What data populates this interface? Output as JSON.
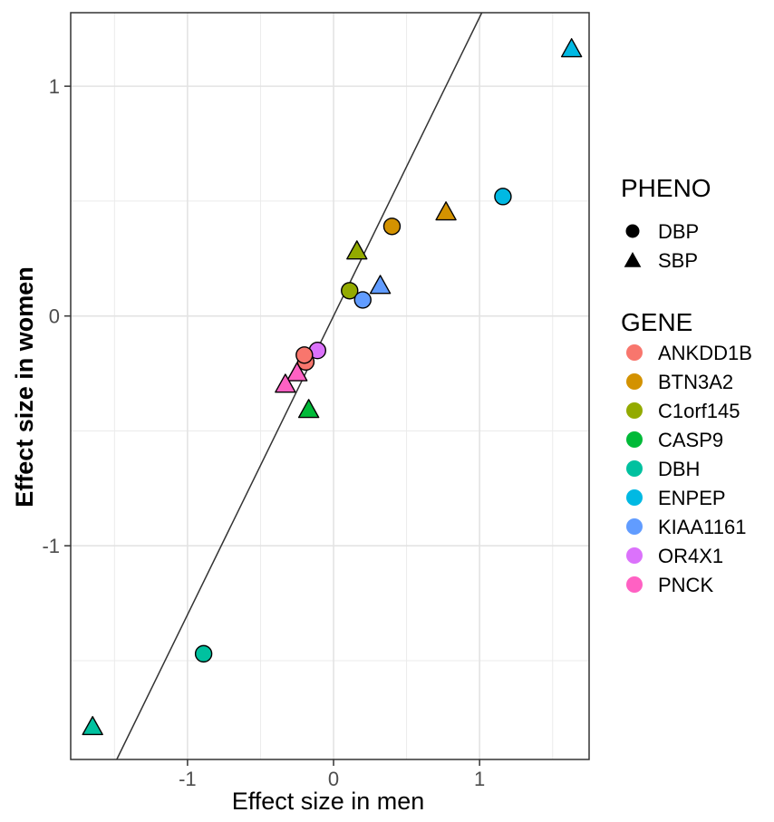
{
  "chart_data": {
    "type": "scatter",
    "xlabel": "Effect size in men",
    "ylabel": "Effect size in women",
    "xlim": [
      -1.8,
      1.75
    ],
    "ylim": [
      -1.93,
      1.32
    ],
    "x_ticks": [
      -1,
      0,
      1
    ],
    "x_tick_labels": [
      "-1",
      "0",
      "1"
    ],
    "x_minor_ticks": [
      -1.5,
      -0.5,
      0.5,
      1.5
    ],
    "y_ticks": [
      -1,
      0,
      1
    ],
    "y_tick_labels": [
      "-1",
      "0",
      "1"
    ],
    "y_minor_ticks": [
      -1.5,
      -0.5,
      0.5
    ],
    "grid": true,
    "reference_line": {
      "slope": 1.3,
      "intercept": 0.0
    },
    "legend_position": "right",
    "legend_shape": {
      "title": "PHENO",
      "entries": [
        {
          "label": "DBP",
          "shape": "circle"
        },
        {
          "label": "SBP",
          "shape": "triangle"
        }
      ]
    },
    "legend_color": {
      "title": "GENE",
      "entries": [
        {
          "label": "ANKDD1B",
          "color": "#F8766D"
        },
        {
          "label": "BTN3A2",
          "color": "#D39200"
        },
        {
          "label": "C1orf145",
          "color": "#93AA00"
        },
        {
          "label": "CASP9",
          "color": "#00BA38"
        },
        {
          "label": "DBH",
          "color": "#00C19F"
        },
        {
          "label": "ENPEP",
          "color": "#00B9E3"
        },
        {
          "label": "KIAA1161",
          "color": "#619CFF"
        },
        {
          "label": "OR4X1",
          "color": "#DB72FB"
        },
        {
          "label": "PNCK",
          "color": "#FF61C3"
        }
      ]
    },
    "points": [
      {
        "gene": "ENPEP",
        "pheno": "SBP",
        "x": 1.63,
        "y": 1.16
      },
      {
        "gene": "ENPEP",
        "pheno": "DBP",
        "x": 1.16,
        "y": 0.52
      },
      {
        "gene": "BTN3A2",
        "pheno": "SBP",
        "x": 0.77,
        "y": 0.45
      },
      {
        "gene": "BTN3A2",
        "pheno": "DBP",
        "x": 0.4,
        "y": 0.39
      },
      {
        "gene": "C1orf145",
        "pheno": "SBP",
        "x": 0.16,
        "y": 0.28
      },
      {
        "gene": "C1orf145",
        "pheno": "DBP",
        "x": 0.11,
        "y": 0.11
      },
      {
        "gene": "KIAA1161",
        "pheno": "SBP",
        "x": 0.32,
        "y": 0.13
      },
      {
        "gene": "KIAA1161",
        "pheno": "DBP",
        "x": 0.2,
        "y": 0.07
      },
      {
        "gene": "OR4X1",
        "pheno": "DBP",
        "x": -0.11,
        "y": -0.15
      },
      {
        "gene": "ANKDD1B",
        "pheno": "DBP",
        "x": -0.19,
        "y": -0.2
      },
      {
        "gene": "ANKDD1B",
        "pheno": "DBP",
        "x": -0.2,
        "y": -0.17
      },
      {
        "gene": "PNCK",
        "pheno": "SBP",
        "x": -0.25,
        "y": -0.25
      },
      {
        "gene": "PNCK",
        "pheno": "SBP",
        "x": -0.33,
        "y": -0.3
      },
      {
        "gene": "CASP9",
        "pheno": "SBP",
        "x": -0.17,
        "y": -0.41
      },
      {
        "gene": "DBH",
        "pheno": "DBP",
        "x": -0.89,
        "y": -1.47
      },
      {
        "gene": "DBH",
        "pheno": "SBP",
        "x": -1.65,
        "y": -1.79
      }
    ]
  }
}
